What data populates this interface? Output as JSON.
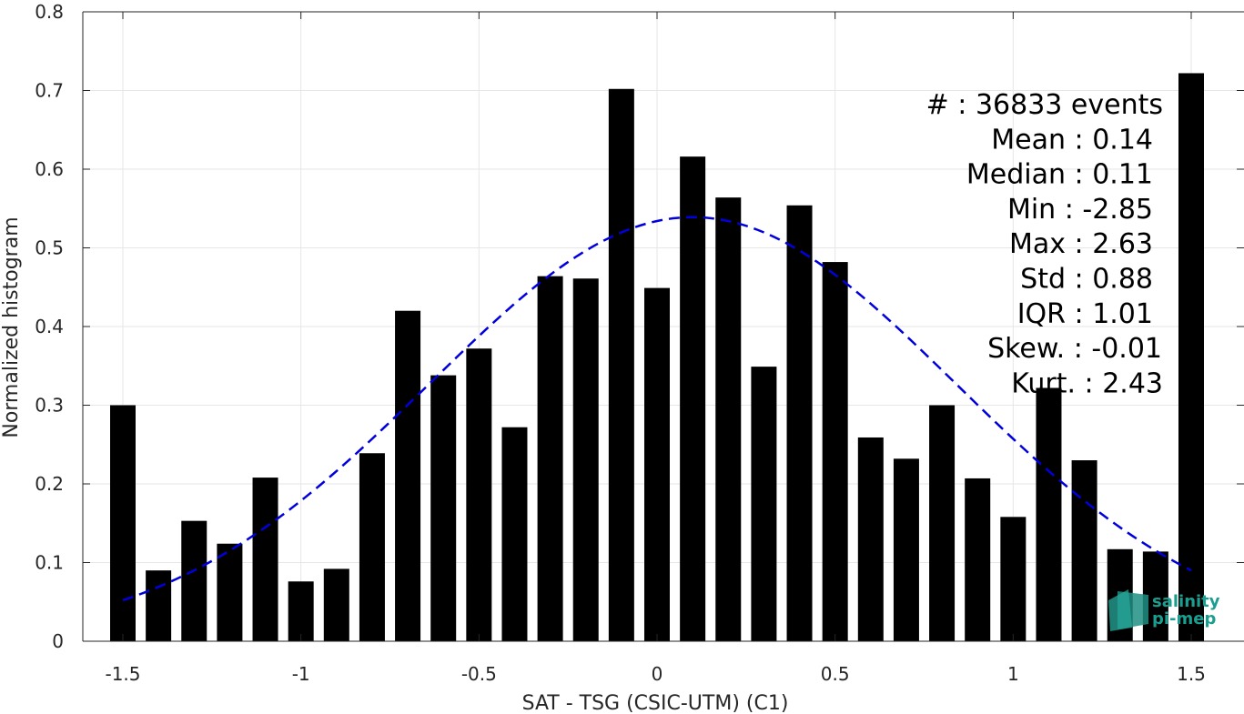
{
  "chart_data": {
    "type": "bar",
    "xlabel": "SAT - TSG (CSIC-UTM) (C1)",
    "ylabel": "Normalized histogram",
    "xlim": [
      -1.55,
      1.55
    ],
    "ylim": [
      0,
      0.8
    ],
    "xticks": [
      -1.5,
      -1,
      -0.5,
      0,
      0.5,
      1,
      1.5
    ],
    "xtick_labels": [
      "-1.5",
      "-1",
      "-0.5",
      "0",
      "0.5",
      "1",
      "1.5"
    ],
    "yticks": [
      0,
      0.1,
      0.2,
      0.3,
      0.4,
      0.5,
      0.6,
      0.7,
      0.8
    ],
    "ytick_labels": [
      "0",
      "0.1",
      "0.2",
      "0.3",
      "0.4",
      "0.5",
      "0.6",
      "0.7",
      "0.8"
    ],
    "grid": true,
    "bar_color": "#000000",
    "fit_color": "#0000dd",
    "bars": {
      "x": [
        -1.5,
        -1.4,
        -1.3,
        -1.2,
        -1.1,
        -1.0,
        -0.9,
        -0.8,
        -0.7,
        -0.6,
        -0.5,
        -0.4,
        -0.3,
        -0.2,
        -0.1,
        0.0,
        0.1,
        0.2,
        0.3,
        0.4,
        0.5,
        0.6,
        0.7,
        0.8,
        0.9,
        1.0,
        1.1,
        1.2,
        1.3,
        1.4,
        1.5
      ],
      "values": [
        0.3,
        0.09,
        0.153,
        0.124,
        0.208,
        0.076,
        0.092,
        0.239,
        0.42,
        0.338,
        0.372,
        0.272,
        0.464,
        0.461,
        0.702,
        0.449,
        0.616,
        0.564,
        0.349,
        0.554,
        0.482,
        0.259,
        0.232,
        0.3,
        0.207,
        0.158,
        0.322,
        0.23,
        0.117,
        0.114,
        0.722
      ]
    },
    "gaussian_fit": {
      "style": "dashed",
      "mean": 0.1,
      "std": 0.74,
      "peak": 0.539,
      "x_range": [
        -1.5,
        1.5
      ]
    },
    "stats": [
      "#  : 36833 events",
      "Mean : 0.14",
      "Median : 0.11",
      "Min : -2.85",
      "Max : 2.63",
      "Std : 0.88",
      "IQR : 1.01",
      "Skew. : -0.01",
      "Kurt. : 2.43"
    ],
    "logo": [
      "salinity",
      "pi-mep"
    ]
  }
}
